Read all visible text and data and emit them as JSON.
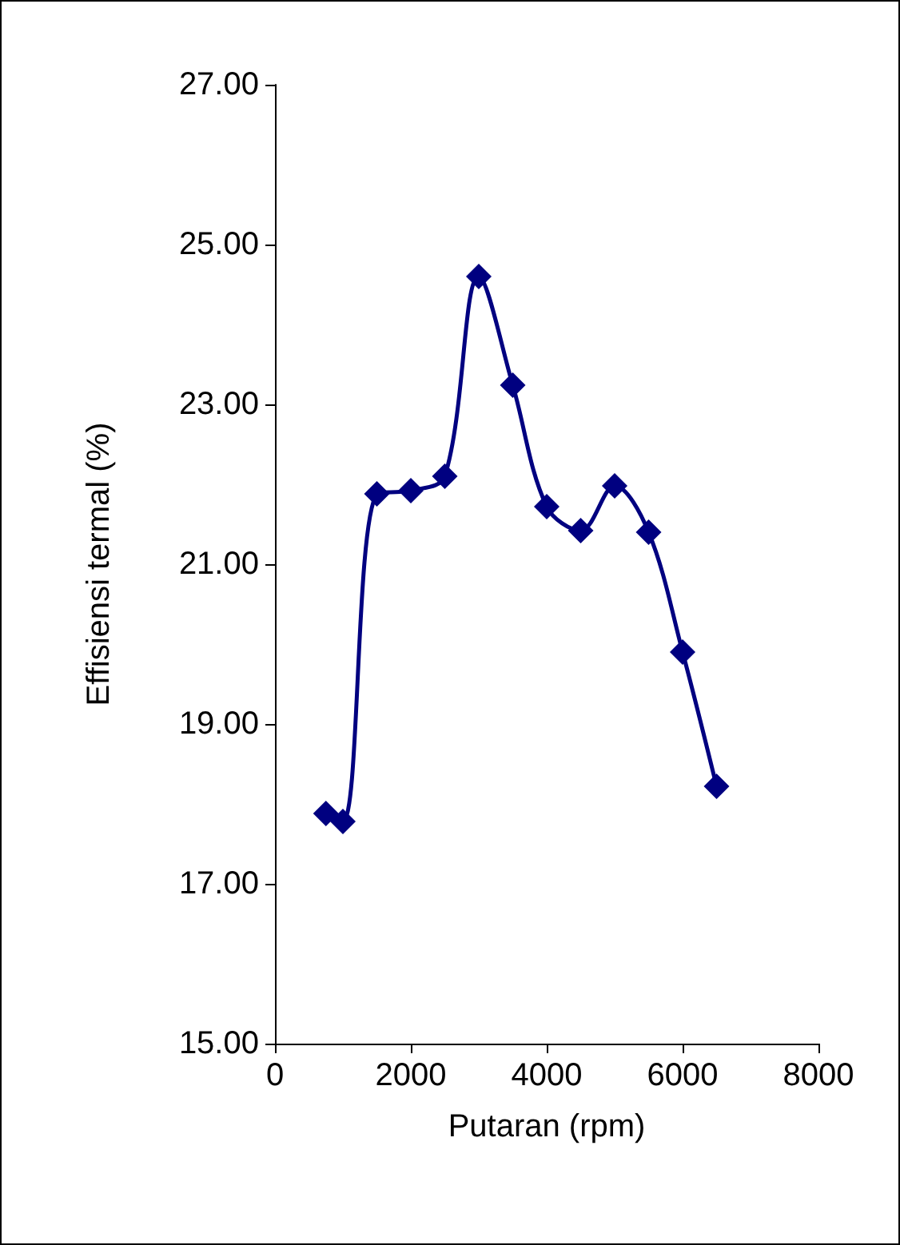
{
  "chart_data": {
    "type": "line",
    "xlabel": "Putaran (rpm)",
    "ylabel": "Effisiensi termal (%)",
    "x": [
      750,
      1000,
      1500,
      2000,
      2500,
      3000,
      3500,
      4000,
      4500,
      5000,
      5500,
      6000,
      6500
    ],
    "series": [
      {
        "color": "#000080",
        "values": [
          17.88,
          17.78,
          21.88,
          21.92,
          22.1,
          24.6,
          23.24,
          21.72,
          21.42,
          21.98,
          21.4,
          19.9,
          18.22
        ]
      }
    ],
    "xlim": [
      0,
      8000
    ],
    "xticks": [
      0,
      2000,
      4000,
      6000,
      8000
    ],
    "ylim": [
      15,
      27
    ],
    "yticks": [
      {
        "value": 15,
        "label": "15.00"
      },
      {
        "value": 17,
        "label": "17.00"
      },
      {
        "value": 19,
        "label": "19.00"
      },
      {
        "value": 21,
        "label": "21.00"
      },
      {
        "value": 23,
        "label": "23.00"
      },
      {
        "value": 25,
        "label": "25.00"
      },
      {
        "value": 27,
        "label": "27.00"
      }
    ],
    "grid": false,
    "marker": "diamond",
    "line_style": "solid"
  }
}
